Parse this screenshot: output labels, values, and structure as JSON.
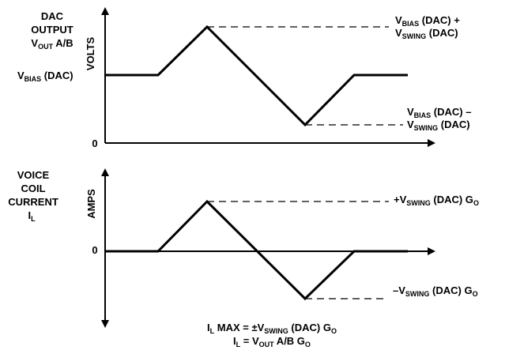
{
  "top_graph": {
    "title": {
      "line1": "DAC",
      "line2": "OUTPUT",
      "line3_main": "V",
      "line3_sub": "OUT",
      "line3_rest": " A/B"
    },
    "axis_label": "VOLTS",
    "zero_label": "0",
    "bias_label": {
      "main": "V",
      "sub": "BIAS",
      "rest": " (DAC)"
    },
    "peak_label": {
      "line1_main": "V",
      "line1_sub": "BIAS",
      "line1_rest": " (DAC) +",
      "line2_main": "V",
      "line2_sub": "SWING",
      "line2_rest": " (DAC)"
    },
    "trough_label": {
      "line1_main": "V",
      "line1_sub": "BIAS",
      "line1_rest": " (DAC) –",
      "line2_main": "V",
      "line2_sub": "SWING",
      "line2_rest": " (DAC)"
    }
  },
  "bottom_graph": {
    "title": {
      "line1": "VOICE",
      "line2": "COIL",
      "line3": "CURRENT",
      "line4_main": "I",
      "line4_sub": "L"
    },
    "axis_label": "AMPS",
    "zero_label": "0",
    "peak_label": {
      "main": "+V",
      "sub": "SWING",
      "rest": " (DAC) G",
      "sub2": "O"
    },
    "trough_label": {
      "main": "–V",
      "sub": "SWING",
      "rest": " (DAC) G",
      "sub2": "O"
    }
  },
  "equations": {
    "line1": {
      "p1": "I",
      "s1": "L",
      "p2": " MAX = ±V",
      "s2": "SWING",
      "p3": " (DAC) G",
      "s3": "O"
    },
    "line2": {
      "p1": "I",
      "s1": "L",
      "p2": " = V",
      "s2": "OUT",
      "p3": " A/B G",
      "s3": "O"
    }
  }
}
